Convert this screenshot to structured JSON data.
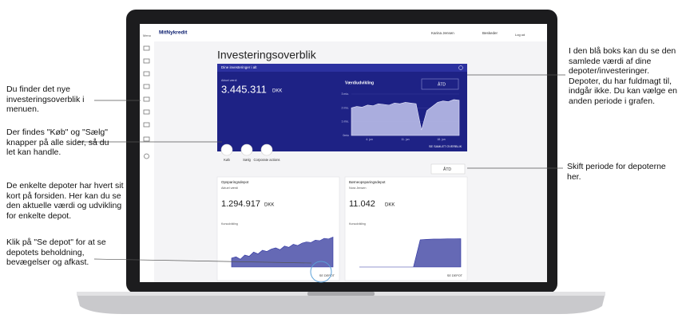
{
  "annotations": {
    "left": [
      "Du finder det nye investeringsoverblik i menuen.",
      "Der findes \"Køb\" og \"Sælg\" knapper på alle sider, så du let kan handle.",
      "De enkelte depoter har hvert sit kort på forsiden. Her kan du se den aktuelle værdi og udvikling for enkelte depot.",
      "Klik på \"Se depot\" for at se depotets beholdning, bevægelser og afkast."
    ],
    "right": [
      "I den blå boks kan du se den samlede værdi af dine depoter/investeringer. Depoter, du har fuldmagt til, indgår ikke. Du kan vælge en anden periode i grafen.",
      "Skift periode for depoterne her."
    ]
  },
  "app": {
    "logo": "MitNykredit",
    "menu": "Menu",
    "user": "Karina Jensen",
    "messages": "Beskeder",
    "logout": "Log ud",
    "title": "Investeringsoverblik",
    "overview": {
      "heading": "Dine investeringer i alt",
      "value_label": "Aktuel værdi",
      "value": "3.445.311",
      "currency": "DKK",
      "chart_title": "Værdiudvikling",
      "period": "ÅTD",
      "link": "SE SAMLET OVERBLIK",
      "chart": {
        "type": "area",
        "color": "#b9bde8",
        "values": [
          2.0,
          2.1,
          2.05,
          2.2,
          2.15,
          2.3,
          2.25,
          2.2,
          2.35,
          2.3,
          2.4,
          2.35,
          2.3,
          0.4,
          1.8,
          2.1,
          2.4,
          2.5,
          2.45,
          2.6,
          2.55
        ],
        "ylim": [
          0,
          3
        ],
        "yticks": [
          {
            "value": 3,
            "label": "3 mio."
          },
          {
            "value": 2,
            "label": "2 mio."
          },
          {
            "value": 1,
            "label": "1 mio."
          },
          {
            "value": 0,
            "label": "0mio"
          }
        ],
        "xlabels": [
          "4. jun",
          "11. jun",
          "18. jun"
        ]
      }
    },
    "buttons": [
      "Køb",
      "Sælg",
      "Corporate actions"
    ],
    "period": "ÅTD",
    "cards": [
      {
        "name": "Opsparingsdepot",
        "value_label": "Aktuel værdi",
        "value": "1.294.917",
        "currency": "DKK",
        "chart_title": "Kursudvikling",
        "link": "SE DEPOT",
        "chart": {
          "type": "area",
          "color": "#4a4fa8",
          "values": [
            0.95,
            0.97,
            0.93,
            1.0,
            0.98,
            1.05,
            1.02,
            1.08,
            1.06,
            1.1,
            1.12,
            1.09,
            1.15,
            1.13,
            1.18,
            1.16,
            1.2,
            1.22,
            1.21,
            1.25,
            1.24,
            1.28,
            1.27,
            1.3
          ],
          "ylim": [
            0.8,
            1.4
          ]
        }
      },
      {
        "name": "Børneopsparingsdepot",
        "owner": "Nora Jensen",
        "value": "11.042",
        "currency": "DKK",
        "chart_title": "Kursudvikling",
        "link": "SE DEPOT",
        "chart": {
          "type": "area",
          "color": "#4a4fa8",
          "values": [
            0,
            0,
            0,
            0,
            0,
            0,
            0,
            0,
            0,
            10.6,
            10.8,
            10.9,
            10.9,
            11.0,
            11.0,
            11.04
          ],
          "ylim": [
            0,
            14
          ]
        }
      }
    ]
  }
}
